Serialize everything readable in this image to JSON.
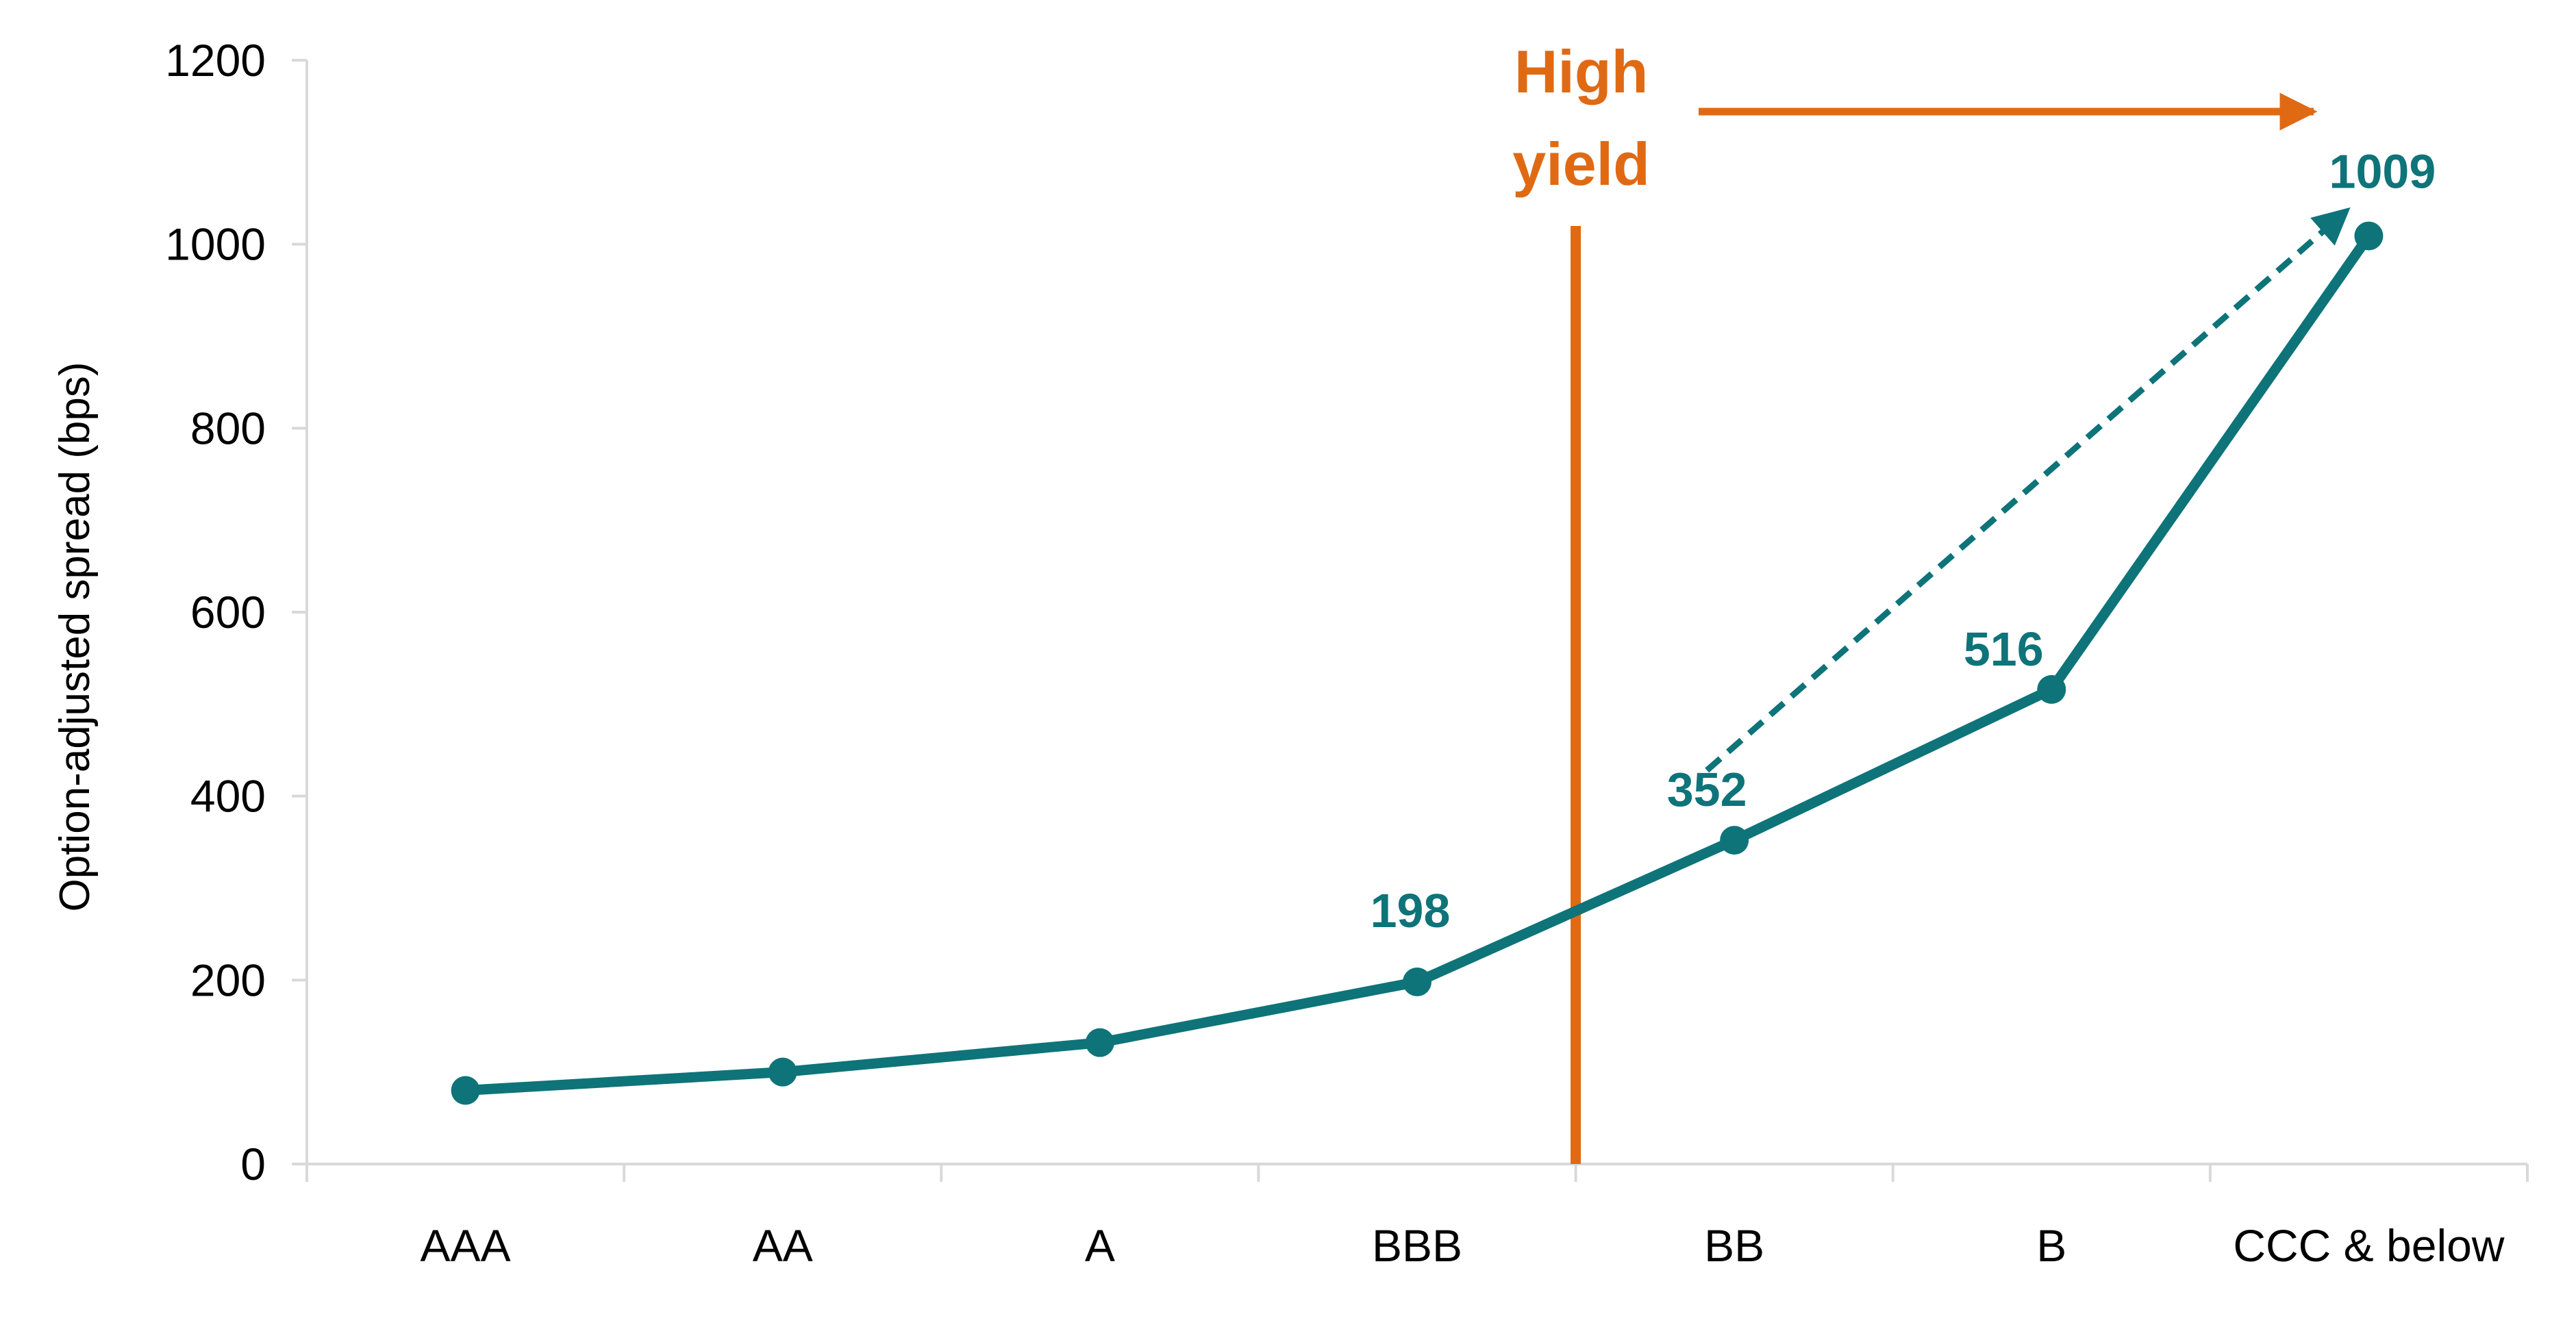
{
  "chart_data": {
    "type": "line",
    "title": "",
    "xlabel": "",
    "ylabel": "Option-adjusted spread (bps)",
    "ylim": [
      0,
      1200
    ],
    "yticks": [
      0,
      200,
      400,
      600,
      800,
      1000,
      1200
    ],
    "grid": false,
    "legend": "none",
    "categories": [
      "AAA",
      "AA",
      "A",
      "BBB",
      "BB",
      "B",
      "CCC & below"
    ],
    "series": [
      {
        "values": [
          80,
          100,
          132,
          198,
          352,
          516,
          1009
        ],
        "color": "#0E7479"
      }
    ],
    "data_labels": [
      {
        "category": "BBB",
        "text": "198"
      },
      {
        "category": "BB",
        "text": "352"
      },
      {
        "category": "B",
        "text": "516"
      },
      {
        "category": "CCC & below",
        "text": "1009"
      }
    ],
    "annotations": {
      "threshold": {
        "text_line1": "High",
        "text_line2": "yield",
        "between": [
          "BBB",
          "BB"
        ],
        "color": "#E06A14"
      },
      "dashed_arrow": {
        "from_category": "BB",
        "to_category": "CCC & below",
        "color": "#0E7479"
      }
    },
    "colors": {
      "axis": "#D9D9D9",
      "line": "#0E7479",
      "accent": "#E06A14"
    }
  }
}
